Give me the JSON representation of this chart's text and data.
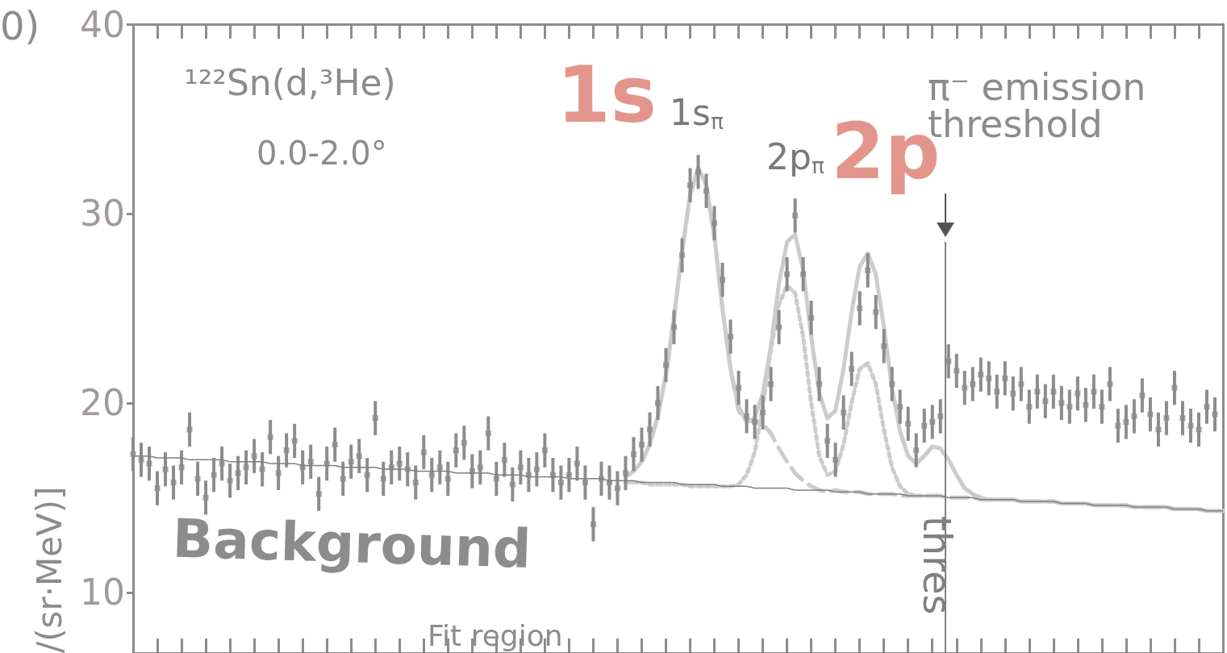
{
  "chart_data": {
    "type": "scatter",
    "ylabel": "/(sr·MeV)]",
    "categories": [
      null,
      null,
      null,
      null,
      null,
      null,
      null,
      null,
      null,
      null,
      null,
      null,
      null,
      null,
      null,
      null,
      null,
      null,
      null,
      null,
      null,
      null,
      null,
      null,
      null,
      null,
      null,
      null,
      null,
      null,
      null,
      null,
      null,
      null,
      null,
      null,
      null,
      null,
      null,
      null,
      null,
      null,
      null,
      null,
      null,
      null,
      null,
      null,
      null,
      null,
      null,
      null,
      null,
      null,
      null,
      null,
      null,
      null,
      null,
      null,
      null,
      null,
      null,
      null,
      null,
      null,
      null,
      null,
      null,
      null,
      null,
      null,
      null,
      null,
      null,
      null,
      null,
      null,
      null,
      null,
      null,
      null,
      null,
      null,
      null,
      null,
      null,
      null,
      null,
      null,
      null,
      null,
      null,
      null,
      null,
      null,
      null,
      null,
      null,
      null,
      null,
      null,
      null,
      null,
      null,
      null,
      null,
      null,
      null,
      null,
      null,
      null,
      null,
      null,
      null,
      null,
      null,
      null,
      null,
      null,
      null,
      null,
      null,
      null,
      null,
      null,
      null,
      null,
      null,
      null,
      null,
      null,
      null,
      null,
      null,
      null
    ],
    "ylim": [
      6.8,
      40
    ],
    "yticks": [
      10,
      20,
      30,
      40
    ],
    "tick_labels": "y",
    "grid": false,
    "series": [
      {
        "color": "#8c8c8c",
        "marker": "square",
        "values": [
          17.3,
          17.0,
          16.8,
          15.5,
          16.5,
          15.8,
          16.6,
          18.6,
          16.0,
          15.0,
          16.2,
          16.8,
          15.9,
          16.3,
          16.6,
          17.2,
          16.5,
          18.2,
          16.3,
          17.5,
          18.0,
          16.6,
          16.9,
          15.2,
          16.8,
          17.8,
          16.0,
          16.9,
          17.2,
          16.2,
          19.2,
          16.0,
          16.6,
          16.8,
          16.5,
          15.8,
          17.4,
          16.2,
          16.6,
          16.0,
          17.5,
          17.9,
          16.4,
          16.6,
          18.4,
          16.0,
          17.0,
          15.7,
          16.6,
          16.2,
          16.5,
          17.5,
          16.2,
          15.8,
          16.2,
          16.8,
          15.8,
          13.6,
          16.0,
          15.8,
          15.5,
          16.3,
          17.3,
          17.8,
          18.6,
          20.0,
          22.0,
          24.0,
          27.8,
          31.5,
          32.2,
          31.2,
          29.5,
          26.5,
          23.5,
          20.8,
          19.3,
          19.0,
          19.5,
          21.0,
          24.0,
          26.8,
          29.9,
          26.8,
          24.5,
          21.0,
          18.0,
          17.0,
          19.5,
          21.8,
          25.0,
          27.0,
          24.8,
          23.0,
          21.0,
          19.8,
          18.9,
          17.5,
          18.8,
          19.0,
          19.3,
          22.2,
          21.7,
          20.8,
          21.0,
          21.5,
          21.3,
          20.6,
          21.3,
          20.5,
          21.0,
          19.8,
          20.6,
          20.1,
          20.6,
          20.0,
          19.8,
          20.5,
          19.9,
          20.6,
          19.8,
          21.0,
          18.8,
          19.0,
          19.3,
          20.4,
          19.4,
          18.6,
          19.2,
          20.8,
          19.2,
          18.8,
          18.6,
          19.8,
          19.4,
          null
        ],
        "errors": [
          0.9,
          0.9,
          0.9,
          0.9,
          0.9,
          0.9,
          0.9,
          0.9,
          0.9,
          0.9,
          0.9,
          0.9,
          0.9,
          0.9,
          0.9,
          0.9,
          0.9,
          0.9,
          0.9,
          0.9,
          0.9,
          0.9,
          0.9,
          0.9,
          0.9,
          0.9,
          0.9,
          0.9,
          0.9,
          0.9,
          0.9,
          0.9,
          0.9,
          0.9,
          0.9,
          0.9,
          0.9,
          0.9,
          0.9,
          0.9,
          0.9,
          0.9,
          0.9,
          0.9,
          0.9,
          0.9,
          0.9,
          0.9,
          0.9,
          0.9,
          0.9,
          0.9,
          0.9,
          0.9,
          0.9,
          0.9,
          0.9,
          0.9,
          0.9,
          0.9,
          0.9,
          0.9,
          0.9,
          0.9,
          0.9,
          0.9,
          0.9,
          0.9,
          0.9,
          0.9,
          0.9,
          0.9,
          0.9,
          0.9,
          0.9,
          0.9,
          0.9,
          0.9,
          0.9,
          0.9,
          0.9,
          0.9,
          0.9,
          0.9,
          0.9,
          0.9,
          0.9,
          0.9,
          0.9,
          0.9,
          0.9,
          0.9,
          0.9,
          0.9,
          0.9,
          0.9,
          0.9,
          0.9,
          0.9,
          0.9,
          0.9,
          0.9,
          0.9,
          0.9,
          0.9,
          0.9,
          0.9,
          0.9,
          0.9,
          0.9,
          0.9,
          0.9,
          0.9,
          0.9,
          0.9,
          0.9,
          0.9,
          0.9,
          0.9,
          0.9,
          0.9,
          0.9,
          0.9,
          0.9,
          0.9,
          0.9,
          0.9,
          0.9,
          0.9,
          0.9,
          0.9,
          0.9,
          0.9,
          0.9,
          0.9,
          null
        ]
      },
      {
        "type": "line",
        "color": "#808080",
        "line_style": "solid",
        "values": [
          17.2,
          17.2,
          17.2,
          17.1,
          17.1,
          17.1,
          17.1,
          17.0,
          17.0,
          17.0,
          17.0,
          17.0,
          16.9,
          16.9,
          16.9,
          16.9,
          16.9,
          16.8,
          16.8,
          16.8,
          16.8,
          16.7,
          16.7,
          16.7,
          16.7,
          16.7,
          16.6,
          16.6,
          16.6,
          16.6,
          16.6,
          16.5,
          16.5,
          16.5,
          16.5,
          16.4,
          16.4,
          16.4,
          16.4,
          16.4,
          16.3,
          16.3,
          16.3,
          16.3,
          16.3,
          16.2,
          16.2,
          16.2,
          16.2,
          16.1,
          16.1,
          16.1,
          16.1,
          16.1,
          16.0,
          16.0,
          16.0,
          16.0,
          16.0,
          15.9,
          15.9,
          15.9,
          15.9,
          15.8,
          15.8,
          15.8,
          15.8,
          15.8,
          15.7,
          15.7,
          15.7,
          15.7,
          15.7,
          15.6,
          15.6,
          15.6,
          15.6,
          15.5,
          15.5,
          15.5,
          15.5,
          15.5,
          15.4,
          15.4,
          15.4,
          15.4,
          15.4,
          15.3,
          15.3,
          15.3,
          15.3,
          15.2,
          15.2,
          15.2,
          15.2,
          15.2,
          15.1,
          15.1,
          15.1,
          15.1,
          15.1,
          15.0,
          15.0,
          15.0,
          15.0,
          14.9,
          14.9,
          14.9,
          14.9,
          14.9,
          14.8,
          14.8,
          14.8,
          14.8,
          14.8,
          14.7,
          14.7,
          14.7,
          14.7,
          14.6,
          14.6,
          14.6,
          14.6,
          14.6,
          14.5,
          14.5,
          14.5,
          14.5,
          14.5,
          14.4,
          14.4,
          14.4,
          14.4,
          14.3,
          14.3,
          14.3
        ]
      },
      {
        "type": "line",
        "color": "#cccccc",
        "line_style": "solid",
        "values": [
          null,
          null,
          null,
          null,
          null,
          null,
          null,
          null,
          null,
          null,
          null,
          null,
          null,
          null,
          null,
          null,
          null,
          null,
          null,
          null,
          null,
          null,
          null,
          null,
          null,
          null,
          null,
          null,
          null,
          null,
          null,
          null,
          null,
          null,
          null,
          null,
          null,
          null,
          null,
          null,
          null,
          null,
          null,
          null,
          null,
          null,
          null,
          null,
          null,
          null,
          null,
          null,
          null,
          null,
          null,
          null,
          null,
          null,
          null,
          null,
          null,
          16.1,
          16.4,
          16.9,
          17.8,
          19.3,
          21.5,
          24.5,
          28.0,
          31.0,
          32.4,
          31.5,
          28.8,
          25.0,
          21.8,
          19.8,
          19.0,
          19.2,
          20.5,
          23.0,
          26.3,
          28.5,
          28.9,
          27.0,
          23.5,
          20.5,
          19.2,
          19.6,
          21.8,
          24.8,
          27.2,
          27.9,
          26.8,
          24.0,
          20.8,
          18.5,
          17.2,
          16.8,
          17.2,
          17.7,
          17.6,
          17.0,
          16.2,
          15.5,
          15.2,
          15.0,
          14.9,
          14.9,
          14.9,
          14.9,
          14.8,
          14.8,
          14.8,
          14.8,
          14.8,
          14.7,
          14.7,
          14.7,
          14.7,
          14.6,
          14.6,
          14.6,
          14.6,
          14.6,
          14.5,
          14.5,
          14.5,
          14.5,
          14.5,
          14.4,
          14.4,
          14.4,
          14.4,
          14.3,
          14.3,
          14.3
        ]
      },
      {
        "type": "line",
        "color": "#cccccc",
        "line_style": "dashed",
        "values": [
          null,
          null,
          null,
          null,
          null,
          null,
          null,
          null,
          null,
          null,
          null,
          null,
          null,
          null,
          null,
          null,
          null,
          null,
          null,
          null,
          null,
          null,
          null,
          null,
          null,
          null,
          null,
          null,
          null,
          null,
          null,
          null,
          null,
          null,
          null,
          null,
          null,
          null,
          null,
          null,
          null,
          null,
          null,
          null,
          null,
          null,
          null,
          null,
          null,
          null,
          null,
          null,
          null,
          null,
          null,
          null,
          null,
          null,
          null,
          null,
          null,
          16.1,
          16.4,
          16.9,
          17.8,
          19.3,
          21.5,
          24.5,
          28.0,
          31.0,
          32.4,
          31.5,
          28.8,
          25.0,
          21.8,
          19.6,
          19.0,
          19.1,
          18.9,
          18.4,
          17.6,
          16.9,
          16.3,
          15.9,
          15.6,
          15.4,
          15.3,
          15.4,
          15.3,
          15.3,
          15.3,
          15.2,
          15.2,
          15.2,
          15.2,
          15.1,
          15.1,
          15.1,
          15.1,
          15.1,
          15.1,
          15.0,
          15.0,
          15.0,
          15.0,
          14.9,
          14.9,
          14.9,
          14.9,
          14.9,
          14.8,
          14.8,
          14.8,
          14.8,
          14.8,
          14.7,
          14.7,
          14.7,
          14.7,
          14.6,
          14.6,
          14.6,
          14.6,
          14.6,
          14.5,
          14.5,
          14.5,
          14.5,
          14.5,
          14.4,
          14.4,
          14.4,
          14.4,
          14.3,
          14.3,
          14.3
        ]
      },
      {
        "type": "line",
        "color": "#cccccc",
        "line_style": "dotted",
        "values": [
          null,
          null,
          null,
          null,
          null,
          null,
          null,
          null,
          null,
          null,
          null,
          null,
          null,
          null,
          null,
          null,
          null,
          null,
          null,
          null,
          null,
          null,
          null,
          null,
          null,
          null,
          null,
          null,
          null,
          null,
          null,
          null,
          null,
          null,
          null,
          null,
          null,
          null,
          null,
          null,
          null,
          null,
          null,
          null,
          null,
          null,
          null,
          null,
          null,
          null,
          null,
          null,
          null,
          null,
          null,
          null,
          null,
          null,
          null,
          null,
          null,
          15.8,
          15.8,
          15.8,
          15.7,
          15.7,
          15.7,
          15.7,
          15.7,
          15.6,
          15.6,
          15.6,
          15.6,
          15.6,
          15.6,
          15.7,
          16.2,
          17.4,
          19.8,
          22.8,
          25.2,
          26.2,
          25.8,
          23.5,
          20.0,
          17.2,
          16.2,
          16.4,
          17.8,
          20.0,
          21.8,
          22.1,
          21.0,
          18.6,
          16.6,
          15.6,
          15.2,
          15.1,
          15.1,
          15.1,
          15.1,
          null,
          null,
          null,
          null,
          null,
          null,
          null,
          null,
          null,
          null,
          null,
          null,
          null,
          null,
          null,
          null,
          null,
          null,
          null,
          null,
          null,
          null,
          null,
          null,
          null,
          null,
          null,
          null,
          null,
          null,
          null,
          null,
          null,
          null,
          null
        ]
      }
    ],
    "annotations": [
      "0)",
      "¹²²Sn(d,³He)",
      "0.0-2.0°",
      "1s$_{π}$",
      "2p$_{π}$",
      "1s",
      "2p",
      "π⁻ emission threshold",
      "Background",
      "Fit region",
      "thres"
    ]
  }
}
